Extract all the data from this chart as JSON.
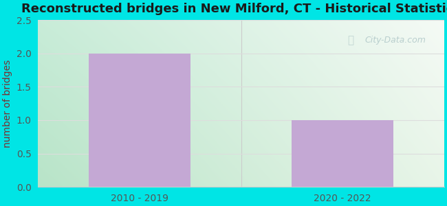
{
  "title": "Reconstructed bridges in New Milford, CT - Historical Statistics",
  "categories": [
    "2010 - 2019",
    "2020 - 2022"
  ],
  "values": [
    2,
    1
  ],
  "bar_color": "#C4A8D4",
  "ylabel": "number of bridges",
  "ylim": [
    0,
    2.5
  ],
  "yticks": [
    0,
    0.5,
    1,
    1.5,
    2,
    2.5
  ],
  "title_fontsize": 13,
  "ylabel_fontsize": 10,
  "tick_fontsize": 10,
  "bg_outer": "#00E5E5",
  "bg_top_left": "#c8ecd8",
  "bg_top_right": "#f5faf5",
  "bg_bottom_left": "#c8ecd8",
  "bg_bottom_right": "#e8f5e8",
  "watermark_text": "City-Data.com",
  "title_color": "#1a1a1a",
  "ylabel_color": "#7a3030",
  "tick_color": "#555555",
  "grid_color": "#dddddd",
  "divider_color": "#cccccc"
}
